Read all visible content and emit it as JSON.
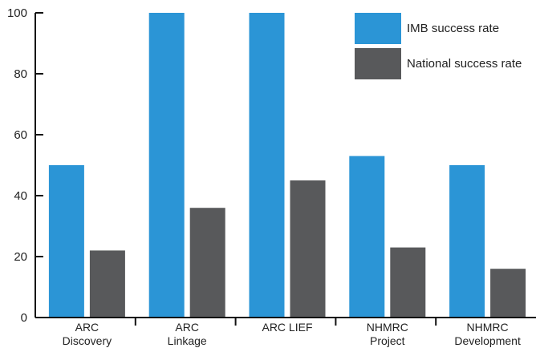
{
  "chart_data": {
    "type": "bar",
    "title": "",
    "xlabel": "",
    "ylabel": "",
    "ylim": [
      0,
      100
    ],
    "yticks": [
      0,
      20,
      40,
      60,
      80,
      100
    ],
    "grid": false,
    "legend_position": "top-right",
    "categories": [
      [
        "ARC",
        "Discovery"
      ],
      [
        "ARC",
        "Linkage"
      ],
      [
        "ARC LIEF"
      ],
      [
        "NHMRC",
        "Project"
      ],
      [
        "NHMRC",
        "Development"
      ]
    ],
    "series": [
      {
        "name": "IMB success rate",
        "color": "#2b95d6",
        "values": [
          50,
          100,
          100,
          53,
          50
        ]
      },
      {
        "name": "National success rate",
        "color": "#58595b",
        "values": [
          22,
          36,
          45,
          23,
          16
        ]
      }
    ]
  }
}
